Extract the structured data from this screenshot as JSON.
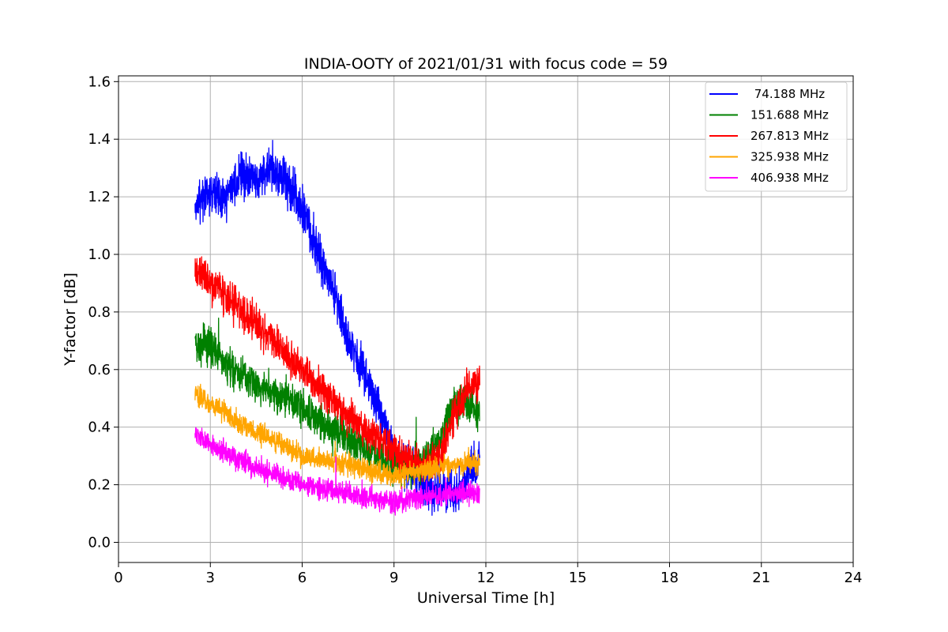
{
  "chart_data": {
    "type": "line",
    "title": "INDIA-OOTY of 2021/01/31 with focus code = 59",
    "xlabel": "Universal Time [h]",
    "ylabel": "Y-factor [dB]",
    "xlim": [
      0,
      24
    ],
    "ylim": [
      -0.07,
      1.62
    ],
    "xticks": [
      0,
      3,
      6,
      9,
      12,
      15,
      18,
      21,
      24
    ],
    "xtick_labels": [
      "0",
      "3",
      "6",
      "9",
      "12",
      "15",
      "18",
      "21",
      "24"
    ],
    "yticks": [
      0.0,
      0.2,
      0.4,
      0.6,
      0.8,
      1.0,
      1.2,
      1.4,
      1.6
    ],
    "ytick_labels": [
      "0.0",
      "0.2",
      "0.4",
      "0.6",
      "0.8",
      "1.0",
      "1.2",
      "1.4",
      "1.6"
    ],
    "grid": true,
    "legend_position": "top-right",
    "x": [
      2.5,
      3.0,
      3.5,
      4.0,
      4.5,
      5.0,
      5.5,
      6.0,
      6.5,
      7.0,
      7.5,
      8.0,
      8.5,
      9.0,
      9.5,
      10.0,
      10.5,
      11.0,
      11.5,
      11.8
    ],
    "series": [
      {
        "name": " 74.188 MHz",
        "color": "#0000ff",
        "values": [
          1.18,
          1.22,
          1.2,
          1.27,
          1.26,
          1.29,
          1.25,
          1.16,
          1.0,
          0.88,
          0.7,
          0.6,
          0.46,
          0.3,
          0.26,
          0.2,
          0.18,
          0.16,
          0.25,
          0.28
        ]
      },
      {
        "name": "151.688 MHz",
        "color": "#008000",
        "values": [
          0.7,
          0.68,
          0.62,
          0.58,
          0.55,
          0.52,
          0.5,
          0.47,
          0.42,
          0.39,
          0.36,
          0.33,
          0.3,
          0.27,
          0.26,
          0.28,
          0.35,
          0.5,
          0.48,
          0.45
        ]
      },
      {
        "name": "267.813 MHz",
        "color": "#ff0000",
        "values": [
          0.95,
          0.9,
          0.86,
          0.8,
          0.76,
          0.71,
          0.64,
          0.6,
          0.54,
          0.5,
          0.44,
          0.4,
          0.36,
          0.32,
          0.28,
          0.27,
          0.3,
          0.45,
          0.55,
          0.56
        ]
      },
      {
        "name": "325.938 MHz",
        "color": "#ffa500",
        "values": [
          0.52,
          0.48,
          0.45,
          0.41,
          0.38,
          0.36,
          0.33,
          0.3,
          0.29,
          0.28,
          0.27,
          0.26,
          0.24,
          0.23,
          0.24,
          0.25,
          0.26,
          0.27,
          0.28,
          0.28
        ]
      },
      {
        "name": "406.938 MHz",
        "color": "#ff00ff",
        "values": [
          0.38,
          0.34,
          0.31,
          0.29,
          0.26,
          0.24,
          0.22,
          0.2,
          0.19,
          0.18,
          0.17,
          0.16,
          0.15,
          0.14,
          0.15,
          0.16,
          0.16,
          0.17,
          0.17,
          0.17
        ]
      }
    ],
    "noise_amplitude": [
      0.07,
      0.06,
      0.06,
      0.035,
      0.035
    ]
  }
}
